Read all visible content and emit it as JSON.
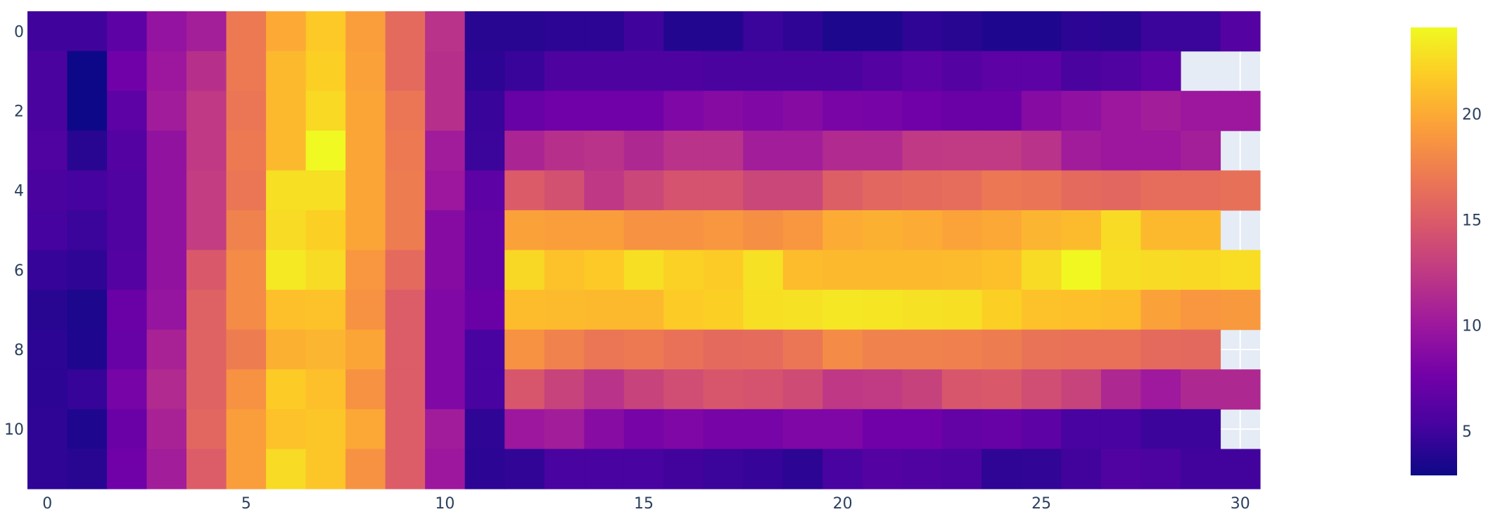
{
  "chart_data": {
    "type": "heatmap",
    "title": "",
    "xlabel": "",
    "ylabel": "",
    "x": [
      0,
      1,
      2,
      3,
      4,
      5,
      6,
      7,
      8,
      9,
      10,
      11,
      12,
      13,
      14,
      15,
      16,
      17,
      18,
      19,
      20,
      21,
      22,
      23,
      24,
      25,
      26,
      27,
      28,
      29,
      30
    ],
    "y": [
      0,
      1,
      2,
      3,
      4,
      5,
      6,
      7,
      8,
      9,
      10,
      11
    ],
    "y_axis_reversed": true,
    "xlim": [
      -0.5,
      30.5
    ],
    "ylim": [
      11.5,
      -0.5
    ],
    "x_ticks": [
      "0",
      "5",
      "10",
      "15",
      "20",
      "25",
      "30"
    ],
    "x_tick_values": [
      0,
      5,
      10,
      15,
      20,
      25,
      30
    ],
    "y_ticks": [
      "0",
      "2",
      "4",
      "6",
      "8",
      "10"
    ],
    "y_tick_values": [
      0,
      2,
      4,
      6,
      8,
      10
    ],
    "grid": true,
    "colorscale": "Plasma",
    "colorscale_stops": [
      "#0d0887",
      "#46039f",
      "#7201a8",
      "#9c179e",
      "#bd3786",
      "#d8576b",
      "#ed7953",
      "#fb9f3a",
      "#fdca26",
      "#f0f921"
    ],
    "zmin": 2.9,
    "zmax": 24.1,
    "colorbar": {
      "ticks": [
        "5",
        "10",
        "15",
        "20"
      ],
      "tick_values": [
        5,
        10,
        15,
        20
      ],
      "placement": "right"
    },
    "missing_color": "#E5ECF6",
    "z": [
      [
        5,
        5,
        6.5,
        9.5,
        10.5,
        17,
        20,
        21.7,
        19.3,
        16,
        12,
        4,
        4,
        4.2,
        4.2,
        5,
        3.8,
        3.8,
        4.8,
        4.3,
        3.5,
        3.5,
        4.3,
        4,
        3.6,
        3.6,
        4.2,
        4,
        4.8,
        4.8,
        6
      ],
      [
        5.5,
        2.9,
        7.5,
        10,
        11.8,
        17,
        20.8,
        22,
        19.5,
        16,
        11.8,
        4.2,
        4.7,
        5.7,
        5.7,
        5.7,
        5.7,
        5.5,
        5.5,
        5.5,
        5.5,
        6,
        6.5,
        6,
        6.5,
        6.5,
        5.5,
        5.8,
        6.5,
        null,
        null
      ],
      [
        5.5,
        2.9,
        6.5,
        10.3,
        12.5,
        16.8,
        20.8,
        22.5,
        19.7,
        16.8,
        11.8,
        4.7,
        7,
        7.5,
        7.5,
        7.5,
        8.3,
        8.7,
        8.4,
        8.7,
        8,
        7.9,
        7.5,
        7.2,
        7.2,
        8.7,
        9.3,
        10,
        10.4,
        10,
        10
      ],
      [
        5.8,
        4,
        6,
        9.4,
        12.5,
        17,
        20.8,
        24.1,
        19.7,
        17,
        10.3,
        4.8,
        11,
        11.8,
        12,
        11.2,
        12,
        12,
        10.4,
        10.4,
        11.4,
        11.4,
        12.5,
        12.6,
        12.6,
        12,
        10.3,
        10,
        10,
        10.5,
        null
      ],
      [
        5.5,
        5.3,
        5.8,
        9.4,
        12.8,
        16.8,
        22.8,
        22.8,
        19.7,
        17.2,
        10,
        6.5,
        15,
        14.2,
        12.4,
        13.5,
        14.4,
        14.4,
        13.5,
        13.5,
        15.2,
        15.8,
        16,
        16.2,
        16.9,
        16.7,
        16,
        15.8,
        16.2,
        16.2,
        16.4
      ],
      [
        5.3,
        4.8,
        5.8,
        9.4,
        12.8,
        17.6,
        22.6,
        22,
        19.7,
        17.2,
        8.7,
        6.8,
        19.5,
        19.3,
        19.3,
        18.6,
        18.6,
        18.9,
        18.4,
        18.9,
        20.1,
        20.3,
        20.1,
        19.6,
        19.9,
        20.6,
        20.9,
        22.6,
        20.8,
        20.8,
        null
      ],
      [
        4.6,
        4.3,
        6,
        9.4,
        14.8,
        18.2,
        23.3,
        22.6,
        18.9,
        16,
        8.7,
        6.8,
        22.4,
        21.3,
        21.7,
        22.8,
        22.1,
        21.8,
        22.9,
        21,
        20.8,
        20.8,
        20.8,
        20.9,
        21.2,
        22.6,
        24,
        22.8,
        22.6,
        22.5,
        22.7
      ],
      [
        4,
        3.5,
        7.2,
        9.6,
        15.4,
        18.2,
        21.2,
        21.3,
        18.6,
        15.1,
        8.4,
        7.2,
        21,
        20.9,
        20.8,
        20.8,
        21.8,
        22,
        22.8,
        22.9,
        23.2,
        23.1,
        22.9,
        22.8,
        22,
        21.3,
        21.2,
        21,
        19.5,
        18.9,
        19
      ],
      [
        4.2,
        3.6,
        7,
        10.8,
        15.5,
        17.2,
        20.3,
        20.6,
        19.7,
        15.1,
        8.4,
        5.4,
        18.6,
        17.6,
        16.8,
        17,
        16.5,
        16,
        16.1,
        16.8,
        18.2,
        17.6,
        17.6,
        17.5,
        17.2,
        16.6,
        16.5,
        16.5,
        16,
        15.9,
        null
      ],
      [
        4.2,
        4.6,
        7.9,
        11.4,
        15.5,
        18.6,
        21.8,
        21.2,
        18.6,
        15.1,
        8.4,
        5.4,
        14.6,
        13.2,
        12,
        13.2,
        14,
        14.6,
        14.4,
        13.8,
        12.4,
        12.6,
        13.1,
        14.6,
        14.8,
        14,
        13.2,
        11.2,
        10.1,
        11.2,
        11.2
      ],
      [
        4.3,
        3.6,
        7.2,
        10.8,
        15.8,
        19.3,
        21.3,
        21.5,
        19.9,
        15.1,
        10.3,
        4.3,
        10,
        10.4,
        8.8,
        7.9,
        8.3,
        7.9,
        7.9,
        8.3,
        8.3,
        7.5,
        7.5,
        6.8,
        7,
        6.5,
        5.4,
        5.4,
        4.9,
        4.9,
        null
      ],
      [
        4.3,
        4,
        7.5,
        10.4,
        15.1,
        19.3,
        22.6,
        21.5,
        18.6,
        15.1,
        10,
        4.2,
        4.4,
        5.4,
        5.4,
        5.4,
        5.1,
        4.8,
        4.6,
        4.2,
        5.4,
        6,
        5.8,
        5.6,
        4.3,
        4.4,
        5.1,
        5.8,
        5.6,
        5.1,
        5.1
      ]
    ]
  }
}
